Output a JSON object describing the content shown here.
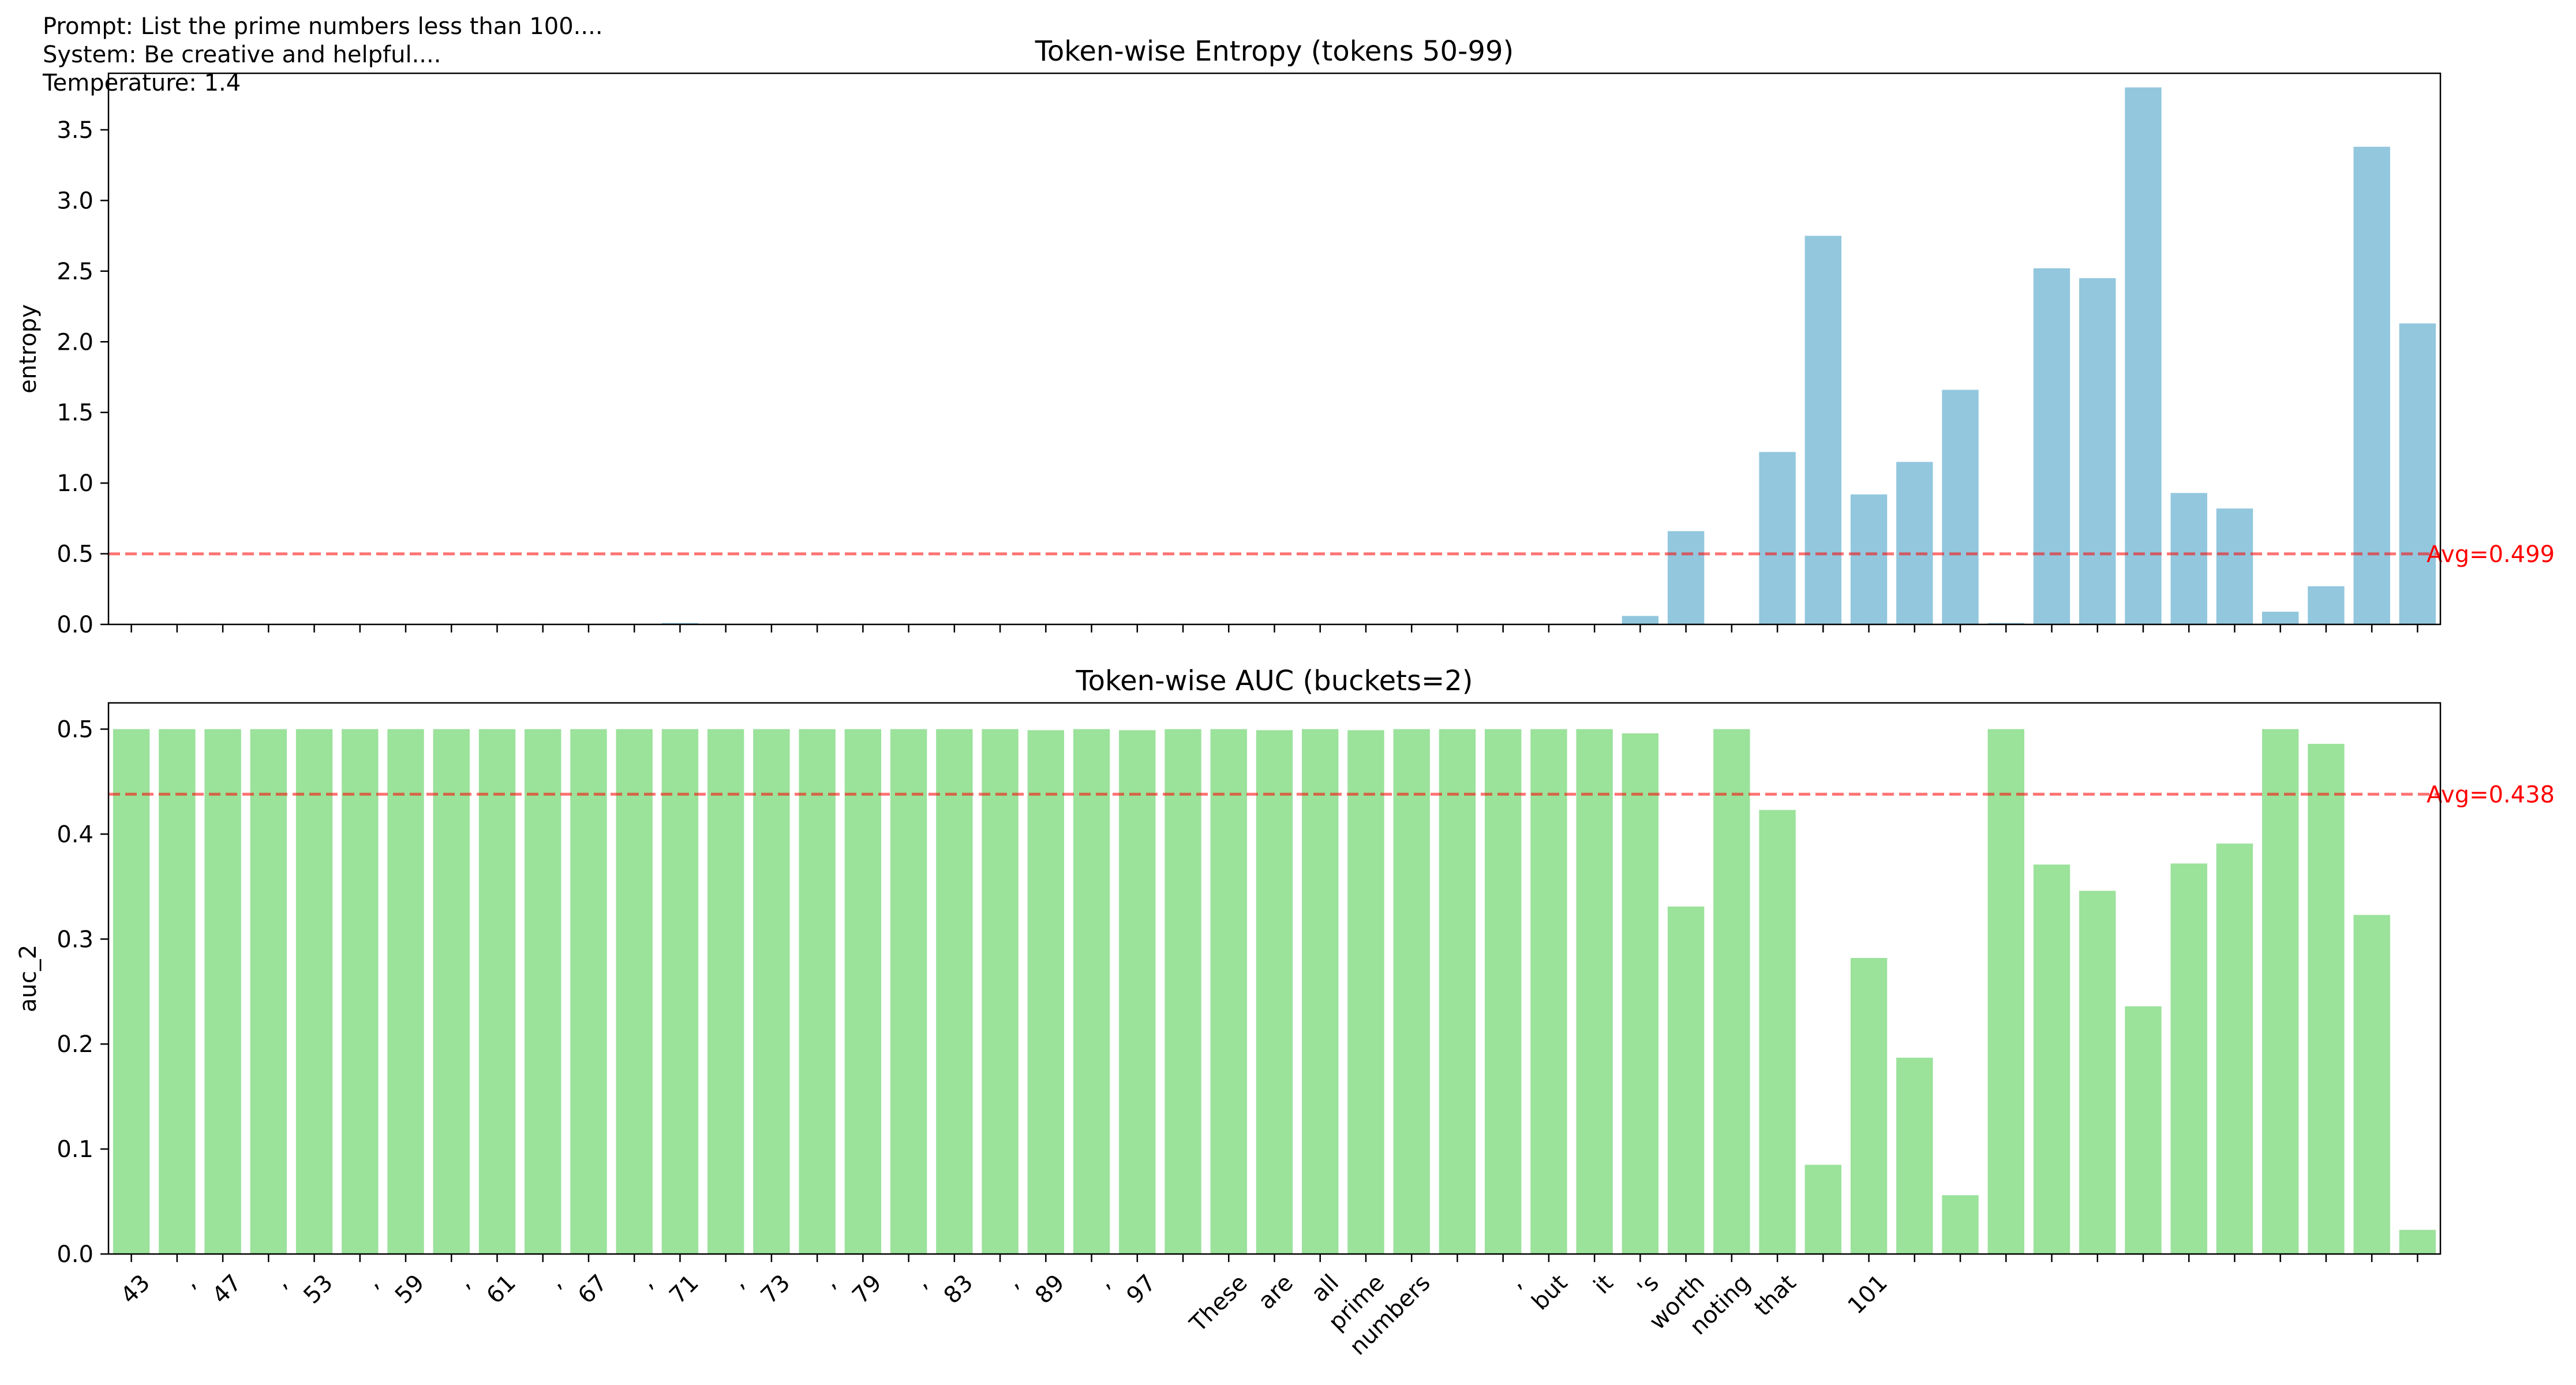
{
  "meta": {
    "prompt": "Prompt: List the prime numbers less than 100....",
    "system": "System: Be creative and helpful....",
    "temperature": "Temperature: 1.4"
  },
  "tokens": [
    "43",
    ",",
    "47",
    ",",
    "53",
    ",",
    "59",
    ",",
    "61",
    ",",
    "67",
    ",",
    "71",
    ",",
    "73",
    ",",
    "79",
    ",",
    "83",
    ",",
    "89",
    ",",
    "97",
    "",
    "These",
    "are",
    "all",
    "prime",
    "numbers",
    "",
    ",",
    "but",
    "it",
    "'s",
    "worth",
    "noting",
    "that",
    "",
    "101",
    ""
  ],
  "chart_data": [
    {
      "type": "bar",
      "title": "Token-wise Entropy (tokens 50-99)",
      "xlabel": "",
      "ylabel": "entropy",
      "ylim": [
        0,
        3.9
      ],
      "yticks": [
        0.0,
        0.5,
        1.0,
        1.5,
        2.0,
        2.5,
        3.0,
        3.5
      ],
      "ytick_labels": [
        "0.0",
        "0.5",
        "1.0",
        "1.5",
        "2.0",
        "2.5",
        "3.0",
        "3.5"
      ],
      "color": "#92c7de",
      "values": [
        0,
        0,
        0,
        0,
        0,
        0,
        0,
        0,
        0,
        0,
        0,
        0,
        0.01,
        0,
        0,
        0,
        0,
        0,
        0,
        0,
        0,
        0,
        0,
        0,
        0,
        0,
        0,
        0,
        0,
        0,
        0,
        0,
        0,
        0.06,
        0.66,
        0,
        1.22,
        2.75,
        0.92,
        1.15,
        1.66,
        0.01,
        2.52,
        2.45,
        3.8,
        0.93,
        0.82,
        0.09,
        0.27,
        3.38,
        2.13
      ],
      "average": 0.499,
      "average_label": "Avg=0.499",
      "average_color": "#ff0000",
      "grid": false,
      "legend": "none"
    },
    {
      "type": "bar",
      "title": "Token-wise AUC (buckets=2)",
      "xlabel": "",
      "ylabel": "auc_2",
      "ylim": [
        0,
        0.525
      ],
      "yticks": [
        0.0,
        0.1,
        0.2,
        0.3,
        0.4,
        0.5
      ],
      "ytick_labels": [
        "0.0",
        "0.1",
        "0.2",
        "0.3",
        "0.4",
        "0.5"
      ],
      "color": "#9be29b",
      "values": [
        0.5,
        0.5,
        0.5,
        0.5,
        0.5,
        0.5,
        0.5,
        0.5,
        0.5,
        0.5,
        0.5,
        0.5,
        0.5,
        0.5,
        0.5,
        0.5,
        0.5,
        0.5,
        0.5,
        0.5,
        0.499,
        0.5,
        0.499,
        0.5,
        0.5,
        0.499,
        0.5,
        0.499,
        0.5,
        0.5,
        0.5,
        0.5,
        0.5,
        0.496,
        0.331,
        0.5,
        0.423,
        0.085,
        0.282,
        0.187,
        0.056,
        0.5,
        0.371,
        0.346,
        0.236,
        0.372,
        0.391,
        0.5,
        0.486,
        0.323,
        0.023
      ],
      "average": 0.438,
      "average_label": "Avg=0.438",
      "average_color": "#ff0000",
      "grid": false,
      "legend": "none"
    }
  ]
}
